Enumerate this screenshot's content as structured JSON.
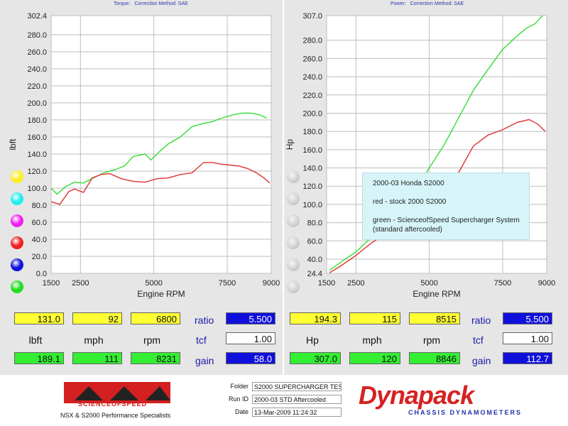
{
  "left_header": {
    "a": "Torque:",
    "b": "Correction Method: SAE"
  },
  "right_header": {
    "a": "Power:",
    "b": "Correction Method: SAE"
  },
  "legend": {
    "line1": "2000-03 Honda S2000",
    "line2": "red - stock 2000 S2000",
    "line3": "green - ScienceofSpeed Supercharger System",
    "line4": "(standard aftercooled)"
  },
  "colors": {
    "green": "#33dd33",
    "red": "#dd3333",
    "panel": "#e6e6e6",
    "grid": "#9a9a9a"
  },
  "left_dots": [
    "#ffee22",
    "#22eeee",
    "#ee22ee",
    "#ee2222",
    "#1111dd",
    "#22dd22"
  ],
  "chart_data": [
    {
      "type": "line",
      "title": "",
      "xlabel": "Engine RPM",
      "ylabel": "lbft",
      "xlim": [
        1500,
        9000
      ],
      "ylim": [
        0,
        302.4
      ],
      "xticks": [
        "1500",
        "2500",
        "5000",
        "7500",
        "9000"
      ],
      "yticks": [
        "302.4",
        "280.0",
        "260.0",
        "240.0",
        "220.0",
        "200.0",
        "180.0",
        "160.0",
        "140.0",
        "120.0",
        "100.0",
        "80.0",
        "60.0",
        "40.0",
        "20.0",
        "0.0"
      ],
      "series": [
        {
          "color": "#33dd33",
          "points": [
            [
              1500,
              100
            ],
            [
              1700,
              93
            ],
            [
              2000,
              102
            ],
            [
              2300,
              107
            ],
            [
              2600,
              106
            ],
            [
              3000,
              113
            ],
            [
              3300,
              118
            ],
            [
              3700,
              122
            ],
            [
              4000,
              126
            ],
            [
              4300,
              137
            ],
            [
              4700,
              140
            ],
            [
              4900,
              133
            ],
            [
              5200,
              143
            ],
            [
              5500,
              152
            ],
            [
              5900,
              160
            ],
            [
              6300,
              172
            ],
            [
              6700,
              176
            ],
            [
              7000,
              178
            ],
            [
              7300,
              182
            ],
            [
              7700,
              186
            ],
            [
              8000,
              188
            ],
            [
              8300,
              188
            ],
            [
              8600,
              186
            ],
            [
              8850,
              182
            ]
          ]
        },
        {
          "color": "#dd3333",
          "points": [
            [
              1500,
              84
            ],
            [
              1800,
              81
            ],
            [
              2100,
              96
            ],
            [
              2300,
              99
            ],
            [
              2600,
              95
            ],
            [
              2900,
              112
            ],
            [
              3200,
              116
            ],
            [
              3500,
              117
            ],
            [
              3900,
              111
            ],
            [
              4300,
              108
            ],
            [
              4700,
              107
            ],
            [
              5100,
              111
            ],
            [
              5500,
              112
            ],
            [
              5900,
              116
            ],
            [
              6300,
              118
            ],
            [
              6700,
              130
            ],
            [
              7000,
              130
            ],
            [
              7300,
              128
            ],
            [
              7600,
              127
            ],
            [
              7900,
              126
            ],
            [
              8200,
              123
            ],
            [
              8500,
              118
            ],
            [
              8750,
              112
            ],
            [
              8950,
              106
            ]
          ]
        }
      ]
    },
    {
      "type": "line",
      "title": "",
      "xlabel": "Engine RPM",
      "ylabel": "Hp",
      "xlim": [
        1500,
        9000
      ],
      "ylim": [
        24.4,
        307.0
      ],
      "xticks": [
        "1500",
        "2500",
        "5000",
        "7500",
        "9000"
      ],
      "yticks": [
        "307.0",
        "280.0",
        "260.0",
        "240.0",
        "220.0",
        "200.0",
        "180.0",
        "160.0",
        "140.0",
        "120.0",
        "100.0",
        "80.0",
        "60.0",
        "40.0",
        "24.4"
      ],
      "series": [
        {
          "color": "#33dd33",
          "points": [
            [
              1600,
              28
            ],
            [
              2000,
              37
            ],
            [
              2500,
              48
            ],
            [
              3000,
              63
            ],
            [
              3500,
              78
            ],
            [
              4000,
              95
            ],
            [
              4500,
              115
            ],
            [
              5000,
              140
            ],
            [
              5500,
              165
            ],
            [
              6000,
              195
            ],
            [
              6500,
              225
            ],
            [
              7000,
              248
            ],
            [
              7500,
              270
            ],
            [
              8000,
              285
            ],
            [
              8300,
              293
            ],
            [
              8600,
              298
            ],
            [
              8850,
              307
            ]
          ]
        },
        {
          "color": "#dd3333",
          "points": [
            [
              1600,
              25
            ],
            [
              2000,
              33
            ],
            [
              2500,
              44
            ],
            [
              3000,
              57
            ],
            [
              3500,
              68
            ],
            [
              4000,
              80
            ],
            [
              4500,
              92
            ],
            [
              5000,
              102
            ],
            [
              5500,
              118
            ],
            [
              6000,
              135
            ],
            [
              6500,
              164
            ],
            [
              7000,
              176
            ],
            [
              7500,
              182
            ],
            [
              8000,
              190
            ],
            [
              8400,
              193
            ],
            [
              8700,
              188
            ],
            [
              8950,
              180
            ]
          ]
        }
      ]
    }
  ],
  "readout_left": {
    "top": [
      "131.0",
      "92",
      "6800"
    ],
    "labels": [
      "lbft",
      "mph",
      "rpm"
    ],
    "bottom": [
      "189.1",
      "111",
      "8231"
    ],
    "ratio_label": "ratio",
    "ratio": "5.500",
    "tcf_label": "tcf",
    "tcf": "1.00",
    "gain_label": "gain",
    "gain": "58.0"
  },
  "readout_right": {
    "top": [
      "194.3",
      "115",
      "8515"
    ],
    "labels": [
      "Hp",
      "mph",
      "rpm"
    ],
    "bottom": [
      "307.0",
      "120",
      "8846"
    ],
    "ratio_label": "ratio",
    "ratio": "5.500",
    "tcf_label": "tcf",
    "tcf": "1.00",
    "gain_label": "gain",
    "gain": "112.7"
  },
  "footer": {
    "sos_logo": "SOS",
    "sos_name": "SCIENCEOFSPEED",
    "sos_tagline": "NSX & S2000 Performance Specialists",
    "folder_label": "Folder",
    "folder": "S2000 SUPERCHARGER TES",
    "runid_label": "Run ID",
    "runid": "2000-03 STD Aftercooled",
    "date_label": "Date",
    "date": "13-Mar-2009  11:24:32",
    "dyna_logo": "Dynapack",
    "dyna_tagline": "CHASSIS DYNAMOMETERS"
  }
}
